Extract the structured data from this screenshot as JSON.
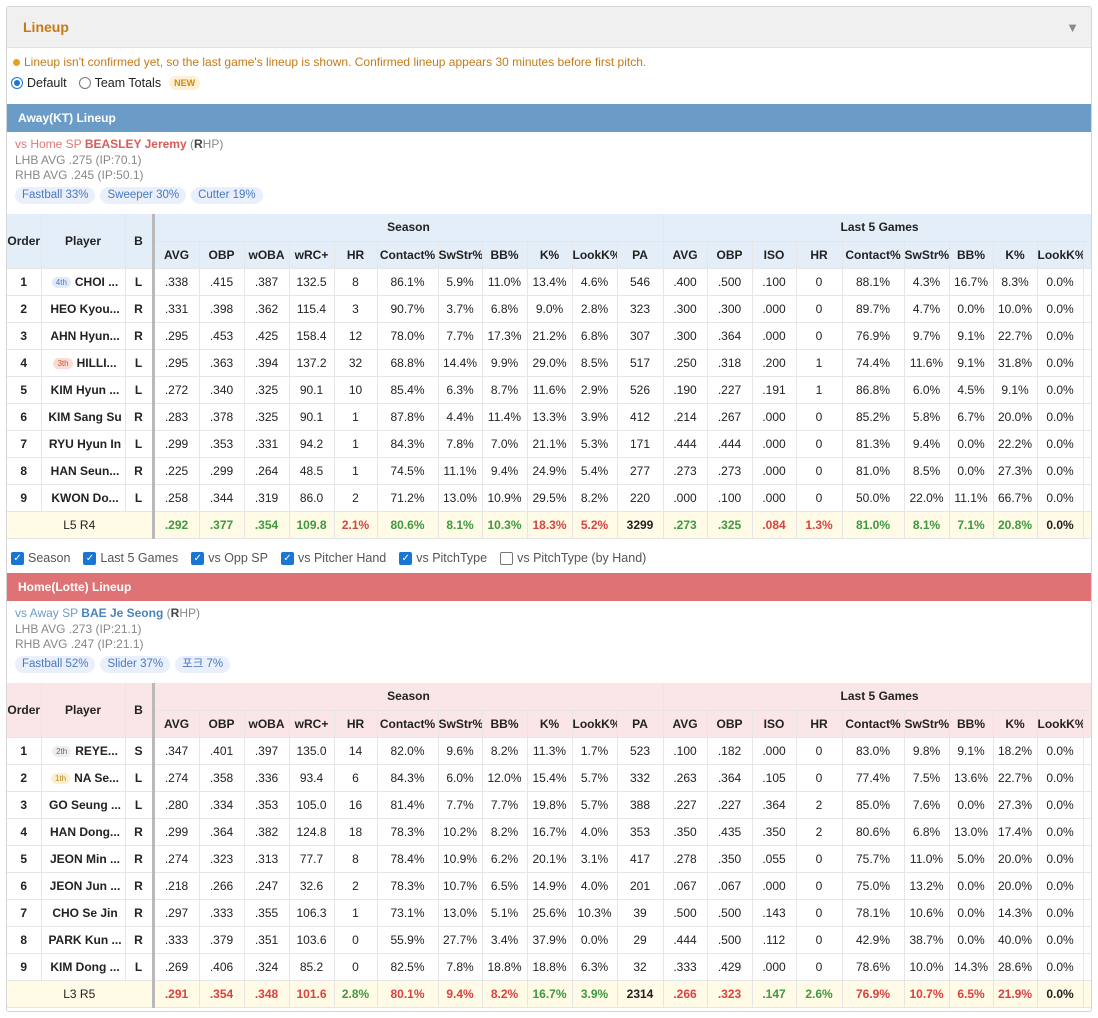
{
  "panel": {
    "title": "Lineup",
    "collapse_icon": "triangle-down-icon"
  },
  "notice": "Lineup isn't confirmed yet, so the last game's lineup is shown. Confirmed lineup appears 30 minutes before first pitch.",
  "view_options": {
    "default": "Default",
    "team_totals": "Team Totals",
    "new_badge": "NEW",
    "selected": "Default"
  },
  "table_headers": {
    "order": "Order",
    "player": "Player",
    "bats": "B",
    "season": "Season",
    "last5": "Last 5 Games",
    "season_cols": [
      "AVG",
      "OBP",
      "wOBA",
      "wRC+",
      "HR",
      "Contact%",
      "SwStr%",
      "BB%",
      "K%",
      "LookK%",
      "PA"
    ],
    "last5_cols": [
      "AVG",
      "OBP",
      "ISO",
      "HR",
      "Contact%",
      "SwStr%",
      "BB%",
      "K%",
      "LookK%"
    ]
  },
  "away": {
    "bar_title": "Away(KT) Lineup",
    "sp_vs": "vs Home SP",
    "sp_name": "BEASLEY Jeremy",
    "sp_hand_prefix": "(",
    "sp_hand_letter": "R",
    "sp_hand_suffix": "HP)",
    "lhb": "LHB AVG .275 (IP:70.1)",
    "rhb": "RHB AVG .245 (IP:50.1)",
    "pitches": [
      "Fastball 33%",
      "Sweeper 30%",
      "Cutter 19%"
    ],
    "rows": [
      {
        "order": "1",
        "pos": "4th",
        "player": "CHOI ...",
        "bats": "L",
        "season": [
          ".338",
          ".415",
          ".387",
          "132.5",
          "8",
          "86.1%",
          "5.9%",
          "11.0%",
          "13.4%",
          "4.6%",
          "546"
        ],
        "last5": [
          ".400",
          ".500",
          ".100",
          "0",
          "88.1%",
          "4.3%",
          "16.7%",
          "8.3%",
          "0.0%"
        ]
      },
      {
        "order": "2",
        "pos": "",
        "player": "HEO Kyou...",
        "bats": "R",
        "season": [
          ".331",
          ".398",
          ".362",
          "115.4",
          "3",
          "90.7%",
          "3.7%",
          "6.8%",
          "9.0%",
          "2.8%",
          "323"
        ],
        "last5": [
          ".300",
          ".300",
          ".000",
          "0",
          "89.7%",
          "4.7%",
          "0.0%",
          "10.0%",
          "0.0%"
        ]
      },
      {
        "order": "3",
        "pos": "",
        "player": "AHN Hyun...",
        "bats": "R",
        "season": [
          ".295",
          ".453",
          ".425",
          "158.4",
          "12",
          "78.0%",
          "7.7%",
          "17.3%",
          "21.2%",
          "6.8%",
          "307"
        ],
        "last5": [
          ".300",
          ".364",
          ".000",
          "0",
          "76.9%",
          "9.7%",
          "9.1%",
          "22.7%",
          "0.0%"
        ]
      },
      {
        "order": "4",
        "pos": "3th",
        "player": "HILLI...",
        "bats": "L",
        "season": [
          ".295",
          ".363",
          ".394",
          "137.2",
          "32",
          "68.8%",
          "14.4%",
          "9.9%",
          "29.0%",
          "8.5%",
          "517"
        ],
        "last5": [
          ".250",
          ".318",
          ".200",
          "1",
          "74.4%",
          "11.6%",
          "9.1%",
          "31.8%",
          "0.0%"
        ]
      },
      {
        "order": "5",
        "pos": "",
        "player": "KIM Hyun ...",
        "bats": "L",
        "season": [
          ".272",
          ".340",
          ".325",
          "90.1",
          "10",
          "85.4%",
          "6.3%",
          "8.7%",
          "11.6%",
          "2.9%",
          "526"
        ],
        "last5": [
          ".190",
          ".227",
          ".191",
          "1",
          "86.8%",
          "6.0%",
          "4.5%",
          "9.1%",
          "0.0%"
        ]
      },
      {
        "order": "6",
        "pos": "",
        "player": "KIM Sang Su",
        "bats": "R",
        "season": [
          ".283",
          ".378",
          ".325",
          "90.1",
          "1",
          "87.8%",
          "4.4%",
          "11.4%",
          "13.3%",
          "3.9%",
          "412"
        ],
        "last5": [
          ".214",
          ".267",
          ".000",
          "0",
          "85.2%",
          "5.8%",
          "6.7%",
          "20.0%",
          "0.0%"
        ]
      },
      {
        "order": "7",
        "pos": "",
        "player": "RYU Hyun In",
        "bats": "L",
        "season": [
          ".299",
          ".353",
          ".331",
          "94.2",
          "1",
          "84.3%",
          "7.8%",
          "7.0%",
          "21.1%",
          "5.3%",
          "171"
        ],
        "last5": [
          ".444",
          ".444",
          ".000",
          "0",
          "81.3%",
          "9.4%",
          "0.0%",
          "22.2%",
          "0.0%"
        ]
      },
      {
        "order": "8",
        "pos": "",
        "player": "HAN Seun...",
        "bats": "R",
        "season": [
          ".225",
          ".299",
          ".264",
          "48.5",
          "1",
          "74.5%",
          "11.1%",
          "9.4%",
          "24.9%",
          "5.4%",
          "277"
        ],
        "last5": [
          ".273",
          ".273",
          ".000",
          "0",
          "81.0%",
          "8.5%",
          "0.0%",
          "27.3%",
          "0.0%"
        ]
      },
      {
        "order": "9",
        "pos": "",
        "player": "KWON Do...",
        "bats": "L",
        "season": [
          ".258",
          ".344",
          ".319",
          "86.0",
          "2",
          "71.2%",
          "13.0%",
          "10.9%",
          "29.5%",
          "8.2%",
          "220"
        ],
        "last5": [
          ".000",
          ".100",
          ".000",
          "0",
          "50.0%",
          "22.0%",
          "11.1%",
          "66.7%",
          "0.0%"
        ]
      }
    ],
    "total": {
      "l_label": "L5",
      "r_label": "R4",
      "season": [
        ".292",
        ".377",
        ".354",
        "109.8",
        "2.1%",
        "80.6%",
        "8.1%",
        "10.3%",
        "18.3%",
        "5.2%",
        "3299"
      ],
      "season_colors": [
        "g",
        "g",
        "g",
        "g",
        "r",
        "g",
        "g",
        "g",
        "r",
        "r",
        "k"
      ],
      "last5": [
        ".273",
        ".325",
        ".084",
        "1.3%",
        "81.0%",
        "8.1%",
        "7.1%",
        "20.8%",
        "0.0%"
      ],
      "last5_colors": [
        "g",
        "g",
        "r",
        "r",
        "g",
        "g",
        "g",
        "g",
        "k"
      ]
    }
  },
  "filters": [
    {
      "label": "Season",
      "checked": true
    },
    {
      "label": "Last 5 Games",
      "checked": true
    },
    {
      "label": "vs Opp SP",
      "checked": true
    },
    {
      "label": "vs Pitcher Hand",
      "checked": true
    },
    {
      "label": "vs PitchType",
      "checked": true
    },
    {
      "label": "vs PitchType (by Hand)",
      "checked": false
    }
  ],
  "home": {
    "bar_title": "Home(Lotte) Lineup",
    "sp_vs": "vs Away SP",
    "sp_name": "BAE Je Seong",
    "sp_hand_prefix": "(",
    "sp_hand_letter": "R",
    "sp_hand_suffix": "HP)",
    "lhb": "LHB AVG .273 (IP:21.1)",
    "rhb": "RHB AVG .247 (IP:21.1)",
    "pitches": [
      "Fastball 52%",
      "Slider 37%",
      "포크 7%"
    ],
    "rows": [
      {
        "order": "1",
        "pos": "2th",
        "player": "REYE...",
        "bats": "S",
        "season": [
          ".347",
          ".401",
          ".397",
          "135.0",
          "14",
          "82.0%",
          "9.6%",
          "8.2%",
          "11.3%",
          "1.7%",
          "523"
        ],
        "last5": [
          ".100",
          ".182",
          ".000",
          "0",
          "83.0%",
          "9.8%",
          "9.1%",
          "18.2%",
          "0.0%"
        ]
      },
      {
        "order": "2",
        "pos": "1th",
        "player": "NA Se...",
        "bats": "L",
        "season": [
          ".274",
          ".358",
          ".336",
          "93.4",
          "6",
          "84.3%",
          "6.0%",
          "12.0%",
          "15.4%",
          "5.7%",
          "332"
        ],
        "last5": [
          ".263",
          ".364",
          ".105",
          "0",
          "77.4%",
          "7.5%",
          "13.6%",
          "22.7%",
          "0.0%"
        ]
      },
      {
        "order": "3",
        "pos": "",
        "player": "GO Seung ...",
        "bats": "L",
        "season": [
          ".280",
          ".334",
          ".353",
          "105.0",
          "16",
          "81.4%",
          "7.7%",
          "7.7%",
          "19.8%",
          "5.7%",
          "388"
        ],
        "last5": [
          ".227",
          ".227",
          ".364",
          "2",
          "85.0%",
          "7.6%",
          "0.0%",
          "27.3%",
          "0.0%"
        ]
      },
      {
        "order": "4",
        "pos": "",
        "player": "HAN Dong...",
        "bats": "R",
        "season": [
          ".299",
          ".364",
          ".382",
          "124.8",
          "18",
          "78.3%",
          "10.2%",
          "8.2%",
          "16.7%",
          "4.0%",
          "353"
        ],
        "last5": [
          ".350",
          ".435",
          ".350",
          "2",
          "80.6%",
          "6.8%",
          "13.0%",
          "17.4%",
          "0.0%"
        ]
      },
      {
        "order": "5",
        "pos": "",
        "player": "JEON Min ...",
        "bats": "R",
        "season": [
          ".274",
          ".323",
          ".313",
          "77.7",
          "8",
          "78.4%",
          "10.9%",
          "6.2%",
          "20.1%",
          "3.1%",
          "417"
        ],
        "last5": [
          ".278",
          ".350",
          ".055",
          "0",
          "75.7%",
          "11.0%",
          "5.0%",
          "20.0%",
          "0.0%"
        ]
      },
      {
        "order": "6",
        "pos": "",
        "player": "JEON Jun ...",
        "bats": "R",
        "season": [
          ".218",
          ".266",
          ".247",
          "32.6",
          "2",
          "78.3%",
          "10.7%",
          "6.5%",
          "14.9%",
          "4.0%",
          "201"
        ],
        "last5": [
          ".067",
          ".067",
          ".000",
          "0",
          "75.0%",
          "13.2%",
          "0.0%",
          "20.0%",
          "0.0%"
        ]
      },
      {
        "order": "7",
        "pos": "",
        "player": "CHO Se Jin",
        "bats": "R",
        "season": [
          ".297",
          ".333",
          ".355",
          "106.3",
          "1",
          "73.1%",
          "13.0%",
          "5.1%",
          "25.6%",
          "10.3%",
          "39"
        ],
        "last5": [
          ".500",
          ".500",
          ".143",
          "0",
          "78.1%",
          "10.6%",
          "0.0%",
          "14.3%",
          "0.0%"
        ]
      },
      {
        "order": "8",
        "pos": "",
        "player": "PARK Kun ...",
        "bats": "R",
        "season": [
          ".333",
          ".379",
          ".351",
          "103.6",
          "0",
          "55.9%",
          "27.7%",
          "3.4%",
          "37.9%",
          "0.0%",
          "29"
        ],
        "last5": [
          ".444",
          ".500",
          ".112",
          "0",
          "42.9%",
          "38.7%",
          "0.0%",
          "40.0%",
          "0.0%"
        ]
      },
      {
        "order": "9",
        "pos": "",
        "player": "KIM Dong ...",
        "bats": "L",
        "season": [
          ".269",
          ".406",
          ".324",
          "85.2",
          "0",
          "82.5%",
          "7.8%",
          "18.8%",
          "18.8%",
          "6.3%",
          "32"
        ],
        "last5": [
          ".333",
          ".429",
          ".000",
          "0",
          "78.6%",
          "10.0%",
          "14.3%",
          "28.6%",
          "0.0%"
        ]
      }
    ],
    "total": {
      "l_label": "L3",
      "r_label": "R5",
      "season": [
        ".291",
        ".354",
        ".348",
        "101.6",
        "2.8%",
        "80.1%",
        "9.4%",
        "8.2%",
        "16.7%",
        "3.9%",
        "2314"
      ],
      "season_colors": [
        "r",
        "r",
        "r",
        "r",
        "g",
        "r",
        "r",
        "r",
        "g",
        "g",
        "k"
      ],
      "last5": [
        ".266",
        ".323",
        ".147",
        "2.6%",
        "76.9%",
        "10.7%",
        "6.5%",
        "21.9%",
        "0.0%"
      ],
      "last5_colors": [
        "r",
        "r",
        "g",
        "g",
        "r",
        "r",
        "r",
        "r",
        "k"
      ]
    }
  }
}
